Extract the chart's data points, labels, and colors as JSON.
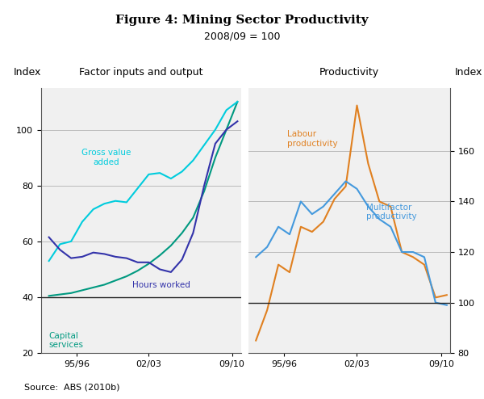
{
  "title": "Figure 4: Mining Sector Productivity",
  "subtitle": "2008/09 = 100",
  "source": "Source:  ABS (2010b)",
  "left_panel_title": "Factor inputs and output",
  "right_panel_title": "Productivity",
  "left_ylabel": "Index",
  "right_ylabel": "Index",
  "left_ylim": [
    20,
    115
  ],
  "right_ylim": [
    80,
    185
  ],
  "left_yticks": [
    20,
    40,
    60,
    80,
    100
  ],
  "right_yticks": [
    80,
    100,
    120,
    140,
    160
  ],
  "years": [
    1993,
    1994,
    1995,
    1996,
    1997,
    1998,
    1999,
    2000,
    2001,
    2002,
    2003,
    2004,
    2005,
    2006,
    2007,
    2008,
    2009,
    2010
  ],
  "capital_services": [
    40.5,
    41.0,
    41.5,
    42.5,
    43.5,
    44.5,
    46.0,
    47.5,
    49.5,
    52.0,
    55.0,
    58.5,
    63.0,
    68.5,
    78.0,
    90.0,
    100.0,
    110.0
  ],
  "gross_value_added": [
    53.0,
    59.0,
    60.0,
    67.0,
    71.5,
    73.5,
    74.5,
    74.0,
    79.0,
    84.0,
    84.5,
    82.5,
    85.0,
    89.0,
    94.5,
    100.0,
    107.0,
    110.0
  ],
  "hours_worked": [
    61.5,
    57.0,
    54.0,
    54.5,
    56.0,
    55.5,
    54.5,
    54.0,
    52.5,
    52.5,
    50.0,
    49.0,
    53.5,
    63.0,
    80.0,
    95.0,
    100.0,
    103.0
  ],
  "labour_productivity": [
    85.0,
    97.0,
    115.0,
    112.0,
    130.0,
    128.0,
    132.0,
    141.0,
    146.0,
    178.0,
    155.0,
    140.0,
    138.0,
    120.0,
    118.0,
    115.0,
    102.0,
    103.0
  ],
  "multifactor_productivity": [
    118.0,
    122.0,
    130.0,
    127.0,
    140.0,
    135.0,
    138.0,
    143.0,
    148.0,
    145.0,
    138.0,
    133.0,
    130.0,
    120.0,
    120.0,
    118.0,
    100.0,
    99.0
  ],
  "color_capital": "#009980",
  "color_gva": "#00CCDD",
  "color_hours": "#3333AA",
  "color_labour": "#E08020",
  "color_multifactor": "#4499DD",
  "color_grid": "#BBBBBB",
  "color_hline": "#222222",
  "panel_bg": "#F0F0F0"
}
